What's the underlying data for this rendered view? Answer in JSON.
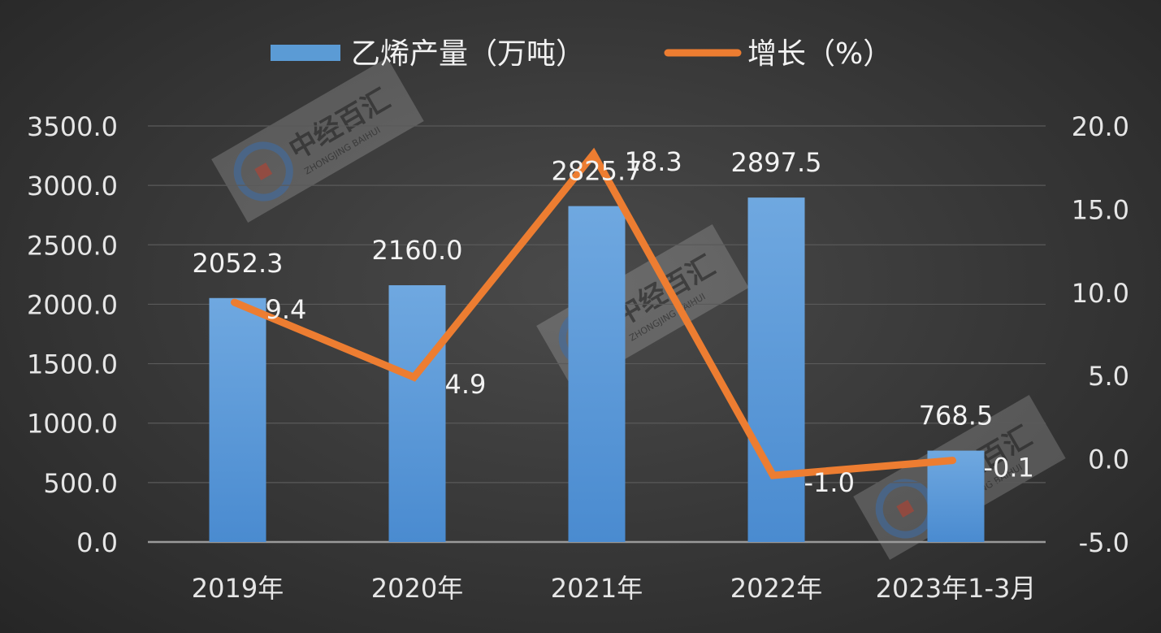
{
  "chart_data": {
    "type": "bar",
    "categories": [
      "2019年",
      "2020年",
      "2021年",
      "2022年",
      "2023年1-3月"
    ],
    "series": [
      {
        "name": "乙烯产量（万吨）",
        "type": "bar",
        "axis": "left",
        "color": "#5b9bd5",
        "values": [
          2052.3,
          2160.0,
          2825.7,
          2897.5,
          768.5
        ],
        "labels": [
          "2052.3",
          "2160.0",
          "2825.7",
          "2897.5",
          "768.5"
        ]
      },
      {
        "name": "增长（%）",
        "type": "line",
        "axis": "right",
        "color": "#ed7d31",
        "values": [
          9.4,
          4.9,
          18.3,
          -1.0,
          -0.1
        ],
        "labels": [
          "9.4",
          "4.9",
          "18.3",
          "-1.0",
          "-0.1"
        ]
      }
    ],
    "y_left": {
      "ylim": [
        0,
        3500
      ],
      "ticks": [
        "0.0",
        "500.0",
        "1000.0",
        "1500.0",
        "2000.0",
        "2500.0",
        "3000.0",
        "3500.0"
      ]
    },
    "y_right": {
      "ylim": [
        -5,
        20
      ],
      "ticks": [
        "-5.0",
        "0.0",
        "5.0",
        "10.0",
        "15.0",
        "20.0"
      ]
    },
    "grid": true,
    "legend_position": "top"
  },
  "watermark": {
    "title": "中经百汇",
    "subtitle": "ZHONGJING BAIHUI"
  }
}
